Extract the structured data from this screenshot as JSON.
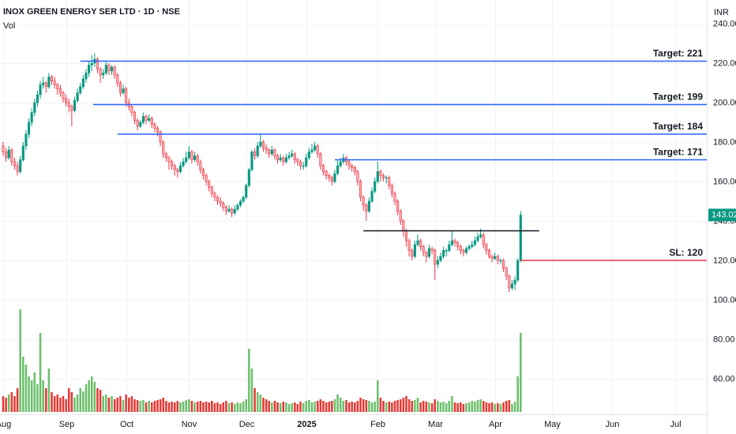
{
  "chart_data": {
    "type": "candlestick",
    "title": "INOX GREEN ENERGY SER LTD · 1D · NSE",
    "volume_label": "Vol",
    "currency": "INR",
    "last_price": 143.02,
    "up_color": "#089981",
    "down_color": "#f23645",
    "volume_up_color": "#6cbf6b",
    "volume_down_color": "#e53935",
    "grid": true,
    "ylim": [
      42,
      252
    ],
    "yticks": [
      {
        "value": 240,
        "label": "240.00"
      },
      {
        "value": 220,
        "label": "220.00"
      },
      {
        "value": 200,
        "label": "200.00"
      },
      {
        "value": 180,
        "label": "180.00"
      },
      {
        "value": 160,
        "label": "160.00"
      },
      {
        "value": 140,
        "label": "140.00"
      },
      {
        "value": 120,
        "label": "120.00"
      },
      {
        "value": 100,
        "label": "100.00"
      },
      {
        "value": 80,
        "label": "80.00"
      },
      {
        "value": 60,
        "label": "60.00"
      }
    ],
    "xlim": [
      -1.1,
      246.1
    ],
    "xticks": [
      {
        "value": 0,
        "label": "Aug"
      },
      {
        "value": 22,
        "label": "Sep"
      },
      {
        "value": 43,
        "label": "Oct"
      },
      {
        "value": 65,
        "label": "Nov"
      },
      {
        "value": 85,
        "label": "Dec"
      },
      {
        "value": 106,
        "label": "2025"
      },
      {
        "value": 131,
        "label": "Feb"
      },
      {
        "value": 151,
        "label": "Mar"
      },
      {
        "value": 172,
        "label": "Apr"
      },
      {
        "value": 192,
        "label": "May"
      },
      {
        "value": 213,
        "label": "Jun"
      },
      {
        "value": 235,
        "label": "Jul"
      }
    ],
    "levels": [
      {
        "label": "Target: 221",
        "value": 221,
        "from": 27,
        "color": "#2962ff"
      },
      {
        "label": "Target: 199",
        "value": 199,
        "from": 31.5,
        "color": "#2962ff"
      },
      {
        "label": "Target: 184",
        "value": 184,
        "from": 40,
        "color": "#2962ff"
      },
      {
        "label": "Target: 171",
        "value": 171,
        "from": 116,
        "color": "#2962ff"
      },
      {
        "value": 135,
        "from": 126,
        "to": 187.5,
        "color": "#131722"
      },
      {
        "label": "SL: 120",
        "value": 120,
        "from": 181,
        "color": "#f23645"
      }
    ],
    "candles": [
      [
        178,
        180,
        173,
        175,
        20
      ],
      [
        175,
        177,
        170,
        172,
        18
      ],
      [
        172,
        178,
        171,
        176,
        22
      ],
      [
        176,
        177,
        168,
        170,
        25
      ],
      [
        170,
        172,
        166,
        168,
        20
      ],
      [
        168,
        170,
        163,
        165,
        30
      ],
      [
        165,
        173,
        164,
        171,
        130
      ],
      [
        171,
        180,
        170,
        178,
        70
      ],
      [
        178,
        186,
        176,
        184,
        60
      ],
      [
        184,
        192,
        182,
        190,
        45
      ],
      [
        190,
        197,
        188,
        195,
        40
      ],
      [
        195,
        202,
        193,
        200,
        50
      ],
      [
        200,
        206,
        198,
        204,
        35
      ],
      [
        204,
        211,
        202,
        209,
        100
      ],
      [
        209,
        213,
        207,
        210,
        40
      ],
      [
        210,
        211,
        205,
        208,
        30
      ],
      [
        208,
        215,
        207,
        213,
        55
      ],
      [
        213,
        214,
        209,
        211,
        25
      ],
      [
        211,
        213,
        207,
        209,
        20
      ],
      [
        209,
        210,
        204,
        207,
        22
      ],
      [
        207,
        209,
        203,
        205,
        18
      ],
      [
        205,
        206,
        200,
        202,
        20
      ],
      [
        202,
        204,
        198,
        200,
        16
      ],
      [
        200,
        202,
        195,
        198,
        30
      ],
      [
        198,
        199,
        188,
        196,
        25
      ],
      [
        196,
        203,
        195,
        201,
        18
      ],
      [
        201,
        207,
        200,
        205,
        22
      ],
      [
        205,
        210,
        204,
        208,
        30
      ],
      [
        208,
        214,
        207,
        212,
        26
      ],
      [
        212,
        217,
        210,
        215,
        35
      ],
      [
        215,
        221,
        213,
        219,
        40
      ],
      [
        219,
        224,
        216,
        220,
        45
      ],
      [
        220,
        225,
        218,
        222,
        38
      ],
      [
        222,
        223,
        215,
        217,
        30
      ],
      [
        217,
        218,
        210,
        214,
        28
      ],
      [
        214,
        217,
        212,
        215,
        20
      ],
      [
        215,
        221,
        214,
        219,
        22
      ],
      [
        219,
        220,
        214,
        216,
        18
      ],
      [
        216,
        219,
        214,
        218,
        20
      ],
      [
        218,
        219,
        212,
        214,
        16
      ],
      [
        214,
        215,
        208,
        210,
        18
      ],
      [
        210,
        211,
        203,
        205,
        20
      ],
      [
        205,
        209,
        204,
        207,
        15
      ],
      [
        207,
        208,
        198,
        200,
        22
      ],
      [
        200,
        202,
        196,
        198,
        18
      ],
      [
        198,
        199,
        193,
        195,
        20
      ],
      [
        195,
        196,
        189,
        191,
        16
      ],
      [
        191,
        192,
        186,
        188,
        15
      ],
      [
        188,
        191,
        187,
        190,
        14
      ],
      [
        190,
        195,
        189,
        193,
        15
      ],
      [
        193,
        194,
        189,
        191,
        12
      ],
      [
        191,
        194,
        190,
        192,
        14
      ],
      [
        192,
        193,
        187,
        189,
        12
      ],
      [
        189,
        190,
        185,
        187,
        14
      ],
      [
        187,
        188,
        183,
        185,
        15
      ],
      [
        185,
        186,
        178,
        180,
        16
      ],
      [
        180,
        181,
        172,
        174,
        18
      ],
      [
        174,
        175,
        170,
        172,
        14
      ],
      [
        172,
        173,
        166,
        170,
        12
      ],
      [
        170,
        171,
        166,
        168,
        13
      ],
      [
        168,
        169,
        163,
        166,
        12
      ],
      [
        166,
        167,
        162,
        165,
        14
      ],
      [
        165,
        170,
        164,
        168,
        12
      ],
      [
        168,
        172,
        167,
        170,
        13
      ],
      [
        170,
        175,
        169,
        172,
        15
      ],
      [
        172,
        178,
        171,
        175,
        16
      ],
      [
        175,
        176,
        169,
        171,
        14
      ],
      [
        171,
        175,
        170,
        173,
        12
      ],
      [
        173,
        174,
        168,
        170,
        13
      ],
      [
        170,
        171,
        164,
        166,
        14
      ],
      [
        166,
        167,
        161,
        163,
        12
      ],
      [
        163,
        164,
        158,
        160,
        13
      ],
      [
        160,
        161,
        155,
        157,
        12
      ],
      [
        157,
        158,
        152,
        154,
        14
      ],
      [
        154,
        155,
        150,
        152,
        11
      ],
      [
        152,
        153,
        148,
        150,
        12
      ],
      [
        150,
        152,
        147,
        149,
        10
      ],
      [
        149,
        150,
        145,
        147,
        12
      ],
      [
        147,
        148,
        143,
        145,
        14
      ],
      [
        145,
        148,
        144,
        146,
        11
      ],
      [
        146,
        147,
        142,
        144,
        12
      ],
      [
        144,
        148,
        143,
        146,
        10
      ],
      [
        146,
        149,
        145,
        148,
        12
      ],
      [
        148,
        151,
        147,
        150,
        11
      ],
      [
        150,
        153,
        149,
        152,
        13
      ],
      [
        152,
        159,
        151,
        158,
        16
      ],
      [
        158,
        167,
        157,
        166,
        80
      ],
      [
        166,
        176,
        165,
        175,
        55
      ],
      [
        175,
        177,
        171,
        173,
        30
      ],
      [
        173,
        180,
        172,
        178,
        25
      ],
      [
        178,
        184,
        177,
        180,
        22
      ],
      [
        180,
        181,
        175,
        177,
        18
      ],
      [
        177,
        179,
        174,
        176,
        16
      ],
      [
        176,
        177,
        172,
        174,
        14
      ],
      [
        174,
        178,
        173,
        176,
        12
      ],
      [
        176,
        177,
        171,
        173,
        14
      ],
      [
        173,
        174,
        169,
        171,
        12
      ],
      [
        171,
        174,
        170,
        172,
        11
      ],
      [
        172,
        173,
        168,
        170,
        13
      ],
      [
        170,
        174,
        169,
        172,
        12
      ],
      [
        172,
        175,
        171,
        173,
        10
      ],
      [
        173,
        176,
        172,
        174,
        11
      ],
      [
        174,
        175,
        169,
        171,
        12
      ],
      [
        171,
        172,
        168,
        170,
        10
      ],
      [
        170,
        171,
        166,
        168,
        13
      ],
      [
        168,
        170,
        166,
        168,
        11
      ],
      [
        168,
        174,
        167,
        172,
        14
      ],
      [
        172,
        177,
        171,
        175,
        15
      ],
      [
        175,
        179,
        174,
        176,
        12
      ],
      [
        176,
        180,
        175,
        178,
        13
      ],
      [
        178,
        179,
        172,
        174,
        14
      ],
      [
        174,
        175,
        166,
        168,
        16
      ],
      [
        168,
        169,
        163,
        165,
        14
      ],
      [
        165,
        166,
        161,
        163,
        12
      ],
      [
        163,
        164,
        160,
        162,
        13
      ],
      [
        162,
        163,
        158,
        160,
        14
      ],
      [
        160,
        166,
        159,
        164,
        16
      ],
      [
        164,
        171,
        163,
        168,
        22
      ],
      [
        168,
        172,
        167,
        170,
        18
      ],
      [
        170,
        174,
        169,
        172,
        14
      ],
      [
        172,
        173,
        168,
        170,
        15
      ],
      [
        170,
        171,
        166,
        168,
        12
      ],
      [
        168,
        169,
        165,
        167,
        13
      ],
      [
        167,
        168,
        163,
        165,
        12
      ],
      [
        165,
        166,
        158,
        160,
        14
      ],
      [
        160,
        161,
        150,
        152,
        18
      ],
      [
        152,
        153,
        145,
        148,
        16
      ],
      [
        148,
        149,
        140,
        145,
        15
      ],
      [
        145,
        152,
        144,
        150,
        14
      ],
      [
        150,
        157,
        149,
        155,
        12
      ],
      [
        155,
        162,
        154,
        160,
        13
      ],
      [
        160,
        170,
        159,
        165,
        40
      ],
      [
        165,
        166,
        160,
        163,
        18
      ],
      [
        163,
        164,
        160,
        162,
        14
      ],
      [
        162,
        163,
        159,
        162,
        12
      ],
      [
        162,
        163,
        156,
        158,
        13
      ],
      [
        158,
        159,
        152,
        154,
        12
      ],
      [
        154,
        155,
        148,
        150,
        14
      ],
      [
        150,
        151,
        143,
        145,
        15
      ],
      [
        145,
        146,
        138,
        140,
        16
      ],
      [
        140,
        141,
        132,
        135,
        18
      ],
      [
        135,
        136,
        127,
        130,
        20
      ],
      [
        130,
        131,
        122,
        125,
        16
      ],
      [
        125,
        126,
        120,
        122,
        14
      ],
      [
        122,
        130,
        121,
        128,
        15
      ],
      [
        128,
        133,
        127,
        130,
        18
      ],
      [
        130,
        131,
        125,
        127,
        12
      ],
      [
        127,
        128,
        122,
        124,
        14
      ],
      [
        124,
        125,
        119,
        122,
        13
      ],
      [
        122,
        128,
        121,
        126,
        12
      ],
      [
        126,
        127,
        123,
        125,
        11
      ],
      [
        125,
        126,
        110,
        118,
        16
      ],
      [
        118,
        122,
        116,
        120,
        14
      ],
      [
        120,
        124,
        119,
        122,
        12
      ],
      [
        122,
        127,
        121,
        125,
        13
      ],
      [
        125,
        126,
        122,
        125,
        11
      ],
      [
        125,
        130,
        124,
        128,
        14
      ],
      [
        128,
        135,
        127,
        130,
        20
      ],
      [
        130,
        131,
        127,
        129,
        12
      ],
      [
        129,
        130,
        125,
        127,
        11
      ],
      [
        127,
        128,
        123,
        125,
        12
      ],
      [
        125,
        126,
        122,
        124,
        10
      ],
      [
        124,
        127,
        123,
        126,
        11
      ],
      [
        126,
        128,
        125,
        127,
        12
      ],
      [
        127,
        130,
        126,
        128,
        14
      ],
      [
        128,
        132,
        127,
        130,
        13
      ],
      [
        130,
        134,
        129,
        132,
        15
      ],
      [
        132,
        136,
        131,
        133,
        16
      ],
      [
        133,
        134,
        126,
        128,
        14
      ],
      [
        128,
        129,
        123,
        125,
        12
      ],
      [
        125,
        126,
        121,
        122,
        11
      ],
      [
        122,
        123,
        119,
        121,
        12
      ],
      [
        121,
        124,
        120,
        122,
        10
      ],
      [
        122,
        123,
        118,
        120,
        11
      ],
      [
        120,
        121,
        118,
        120,
        10
      ],
      [
        120,
        121,
        114,
        116,
        12
      ],
      [
        116,
        117,
        110,
        112,
        14
      ],
      [
        112,
        113,
        104,
        106,
        15
      ],
      [
        106,
        110,
        105,
        108,
        10
      ],
      [
        108,
        112,
        105,
        110,
        13
      ],
      [
        110,
        121,
        109,
        120,
        45
      ],
      [
        120,
        145,
        119,
        143,
        100
      ]
    ]
  }
}
